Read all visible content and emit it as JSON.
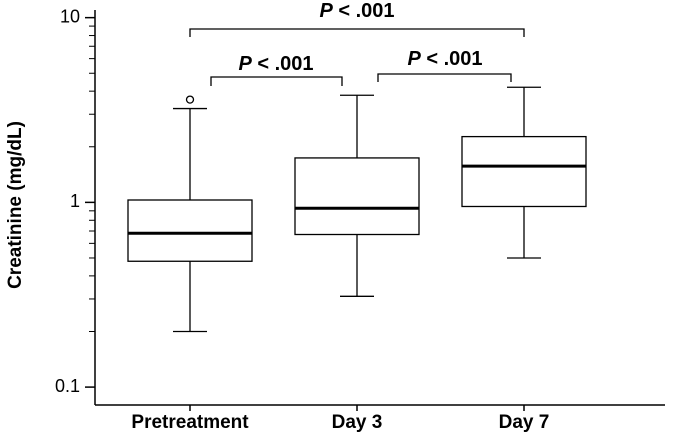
{
  "chart_data": {
    "type": "box",
    "y_label": "Creatinine (mg/dL)",
    "categories": [
      "Pretreatment",
      "Day 3",
      "Day 7"
    ],
    "boxes": [
      {
        "whisker_low": 0.2,
        "q1": 0.48,
        "median": 0.68,
        "q3": 1.03,
        "whisker_high": 3.22,
        "outliers": [
          3.6
        ]
      },
      {
        "whisker_low": 0.31,
        "q1": 0.67,
        "median": 0.93,
        "q3": 1.74,
        "whisker_high": 3.8,
        "outliers": []
      },
      {
        "whisker_low": 0.5,
        "q1": 0.95,
        "median": 1.57,
        "q3": 2.27,
        "whisker_high": 4.2,
        "outliers": []
      }
    ],
    "color": "#000000",
    "box_fill": "#ffffff",
    "y_log": true,
    "ylim": [
      0.08,
      11
    ],
    "yticks": [
      0.1,
      1,
      10
    ],
    "yminorticks": [
      0.2,
      0.3,
      0.4,
      0.5,
      0.6,
      0.7,
      0.8,
      0.9,
      2,
      3,
      4,
      5,
      6,
      7,
      8,
      9
    ],
    "annotations": [
      "P < .001",
      "P < .001",
      "P < .001"
    ]
  }
}
